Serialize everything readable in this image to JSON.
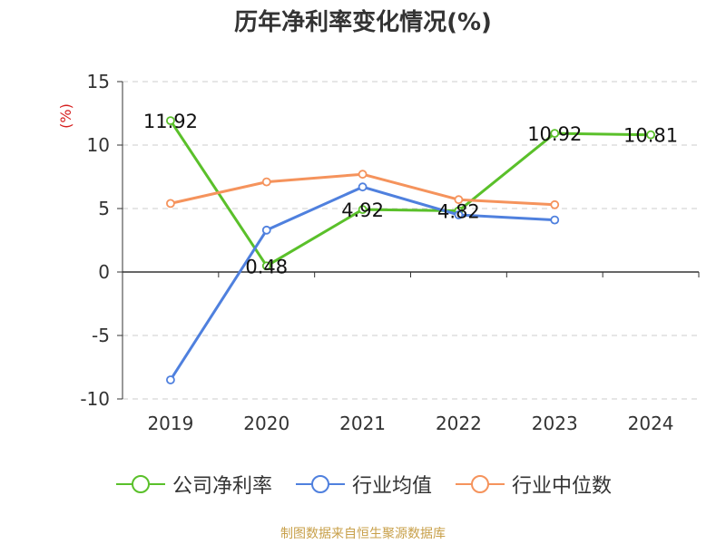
{
  "chart_data": {
    "type": "line",
    "title": "历年净利率变化情况(%)",
    "ylabel": "(%)",
    "categories": [
      "2019",
      "2020",
      "2021",
      "2022",
      "2023",
      "2024"
    ],
    "ylim": [
      -10,
      15
    ],
    "yticks": [
      15,
      10,
      5,
      0,
      -5,
      -10
    ],
    "grid": true,
    "legend": "bottom",
    "series": [
      {
        "name": "公司净利率",
        "color": "#5ac02a",
        "values": [
          11.92,
          0.48,
          4.92,
          4.82,
          10.92,
          10.81
        ],
        "labels": [
          "11.92",
          "0.48",
          "4.92",
          "4.82",
          "10.92",
          "10.81"
        ]
      },
      {
        "name": "行业均值",
        "color": "#4f80de",
        "values": [
          -8.5,
          3.3,
          6.7,
          4.5,
          4.1,
          null
        ]
      },
      {
        "name": "行业中位数",
        "color": "#f5935c",
        "values": [
          5.4,
          7.1,
          7.7,
          5.7,
          5.3,
          null
        ]
      }
    ]
  },
  "source": "制图数据来自恒生聚源数据库"
}
